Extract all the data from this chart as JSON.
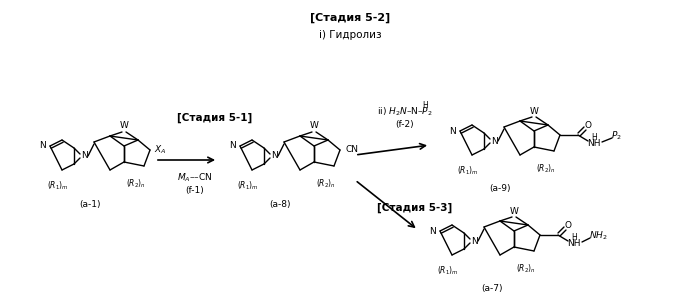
{
  "background_color": "#ffffff",
  "fig_width": 7.0,
  "fig_height": 3.05,
  "dpi": 100,
  "stage_52_label": "[Стадия 5-2]",
  "hydrolysis_label": "i) Гидролиз",
  "stage_51_label": "[Стадия 5-1]",
  "reagent_f1_line1": "Mₐ––CN",
  "reagent_f1_line2": "(f-1)",
  "reagent_f2_line1": "ii) H₂N–N–P₂",
  "reagent_f2_line2": "(f-2)",
  "stage_53_label": "[Стадия 5-3]",
  "compound_a1": "(a-1)",
  "compound_a8": "(a-8)",
  "compound_a9": "(a-9)",
  "compound_a7": "(a-7)"
}
